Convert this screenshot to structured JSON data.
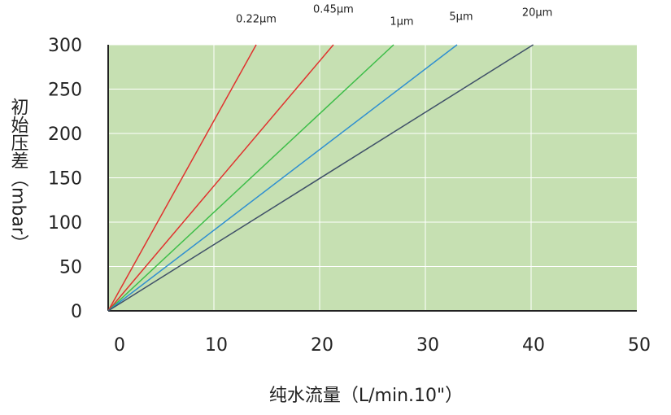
{
  "chart_data": {
    "type": "line",
    "x_label": "纯水流量（L/min.10\"）",
    "y_label": "初始压差（mbar）",
    "series": [
      {
        "name": "0.22μm",
        "color": "#e0322e",
        "x": [
          0,
          14
        ],
        "values": [
          0,
          300
        ]
      },
      {
        "name": "0.45μm",
        "color": "#e0322e",
        "x": [
          0,
          21.3
        ],
        "values": [
          0,
          300
        ]
      },
      {
        "name": "1μm",
        "color": "#3cbd48",
        "x": [
          0,
          27
        ],
        "values": [
          0,
          300
        ]
      },
      {
        "name": "5μm",
        "color": "#2f8fd0",
        "x": [
          0,
          33
        ],
        "values": [
          0,
          300
        ]
      },
      {
        "name": "20μm",
        "color": "#3f5068",
        "x": [
          0,
          40.2
        ],
        "values": [
          0,
          300
        ]
      }
    ],
    "xlim": [
      0,
      50
    ],
    "xticks": [
      0,
      10,
      20,
      30,
      40,
      50
    ],
    "ylim": [
      0,
      300
    ],
    "yticks": [
      0,
      50,
      100,
      150,
      200,
      250,
      300
    ],
    "grid": true,
    "background": "#c6e0b2"
  }
}
